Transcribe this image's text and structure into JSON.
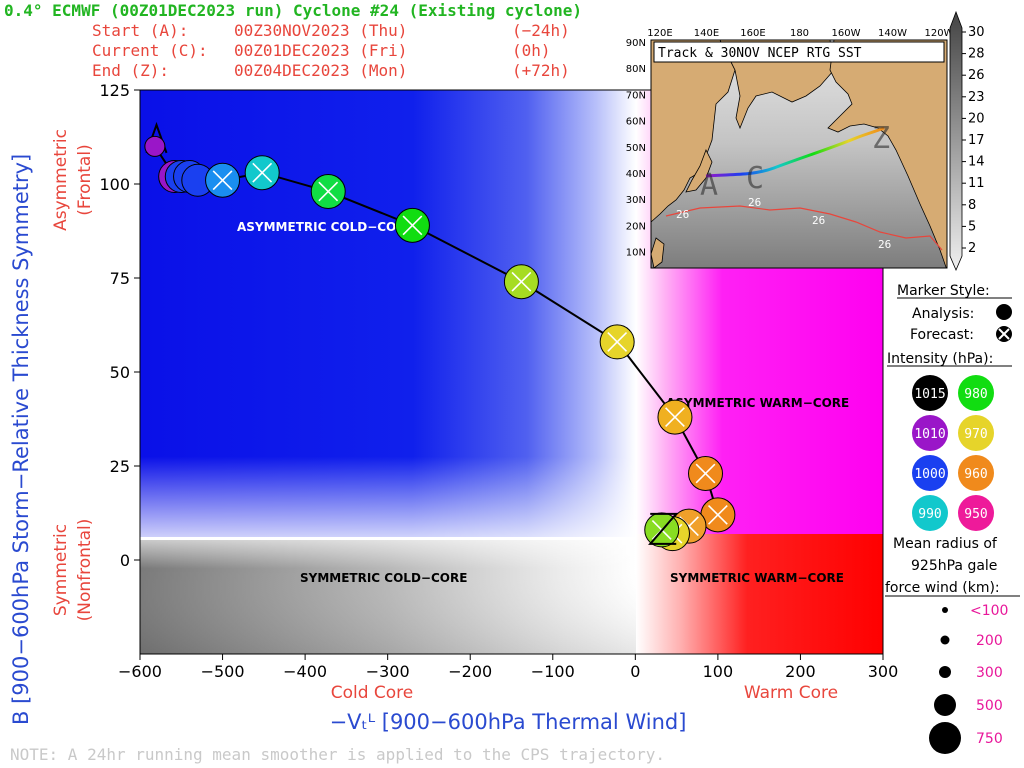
{
  "header": {
    "title": "0.4° ECMWF (00Z01DEC2023 run) Cyclone #24 (Existing cyclone)",
    "start": {
      "label": "Start (A):",
      "date": "00Z30NOV2023 (Thu)",
      "offset": "(−24h)"
    },
    "current": {
      "label": "Current (C):",
      "date": "00Z01DEC2023 (Fri)",
      "offset": "(0h)"
    },
    "end": {
      "label": "End (Z):",
      "date": "00Z04DEC2023 (Mon)",
      "offset": "(+72h)"
    }
  },
  "axes": {
    "ylabel": "B [900−600hPa Storm−Relative Thickness Symmetry]",
    "xlabel": "−Vₜᴸ [900−600hPa Thermal Wind]",
    "y_top_label_1": "Asymmetric",
    "y_top_label_2": "(Frontal)",
    "y_bottom_label_1": "Symmetric",
    "y_bottom_label_2": "(Nonfrontal)",
    "x_left_label": "Cold Core",
    "x_right_label": "Warm Core",
    "x_ticks": [
      "−600",
      "−500",
      "−400",
      "−300",
      "−200",
      "−100",
      "0",
      "100",
      "200",
      "300"
    ],
    "y_ticks": [
      "125",
      "100",
      "75",
      "50",
      "25",
      "0"
    ]
  },
  "regions": {
    "asym_cold": "ASYMMETRIC COLD−CORE",
    "asym_warm": "ASYMMETRIC WARM−CORE",
    "sym_cold": "SYMMETRIC COLD−CORE",
    "sym_warm": "SYMMETRIC WARM−CORE"
  },
  "note": "NOTE:  A 24hr running mean smoother is applied to the CPS trajectory.",
  "inset": {
    "title": "Track & 30NOV NCEP RTG SST",
    "lon_ticks": [
      "120E",
      "140E",
      "160E",
      "180",
      "160W",
      "140W",
      "120W"
    ],
    "lat_ticks": [
      "90N",
      "80N",
      "70N",
      "60N",
      "50N",
      "40N",
      "30N",
      "20N",
      "10N"
    ],
    "sst_labels": [
      "26",
      "26",
      "26",
      "26"
    ],
    "marker_a": "A",
    "marker_c": "C",
    "marker_z": "Z"
  },
  "colorbar": {
    "ticks": [
      "30",
      "28",
      "26",
      "23",
      "20",
      "17",
      "14",
      "11",
      "8",
      "5",
      "2"
    ]
  },
  "legend": {
    "marker_style_title": "Marker Style:",
    "analysis": "Analysis:",
    "forecast": "Forecast:",
    "intensity_title": "Intensity (hPa):",
    "intensity": [
      {
        "label": "1015",
        "color": "#000000"
      },
      {
        "label": "980",
        "color": "#11dd11"
      },
      {
        "label": "1010",
        "color": "#9a16c8"
      },
      {
        "label": "970",
        "color": "#e6d42a"
      },
      {
        "label": "1000",
        "color": "#1a40f0"
      },
      {
        "label": "960",
        "color": "#f08a1c"
      },
      {
        "label": "990",
        "color": "#12c8cc"
      },
      {
        "label": "950",
        "color": "#ee1a9a"
      }
    ],
    "radius_title_1": "Mean radius of",
    "radius_title_2": "925hPa gale",
    "radius_title_3": "force wind (km):",
    "radius": [
      "<100",
      "200",
      "300",
      "500",
      "750"
    ]
  },
  "chart_data": {
    "type": "scatter",
    "title": "0.4° ECMWF (00Z01DEC2023 run) Cyclone #24 (Existing cyclone)",
    "xlabel": "−Vt^L [900−600hPa Thermal Wind]",
    "ylabel": "B [900−600hPa Storm−Relative Thickness Symmetry]",
    "xlim": [
      -600,
      300
    ],
    "ylim": [
      -25,
      125
    ],
    "start_marker": {
      "label": "A",
      "x": -580,
      "y": 112
    },
    "end_marker": {
      "label": "Z",
      "x": 35,
      "y": 8
    },
    "points": [
      {
        "x": -582,
        "y": 110,
        "color": "#9a16c8",
        "type": "analysis"
      },
      {
        "x": -558,
        "y": 102,
        "color": "#9a16c8",
        "type": "analysis"
      },
      {
        "x": -550,
        "y": 102,
        "color": "#1a40f0",
        "type": "analysis"
      },
      {
        "x": -540,
        "y": 102,
        "color": "#1a40f0",
        "type": "analysis"
      },
      {
        "x": -530,
        "y": 101,
        "color": "#1a40f0",
        "type": "analysis"
      },
      {
        "x": -500,
        "y": 101,
        "color": "#1a8ef0",
        "type": "forecast"
      },
      {
        "x": -452,
        "y": 103,
        "color": "#12c8cc",
        "type": "forecast"
      },
      {
        "x": -372,
        "y": 98,
        "color": "#11dd44",
        "type": "forecast"
      },
      {
        "x": -270,
        "y": 89,
        "color": "#11dd11",
        "type": "forecast"
      },
      {
        "x": -138,
        "y": 74,
        "color": "#a6dc22",
        "type": "forecast"
      },
      {
        "x": -22,
        "y": 58,
        "color": "#e6d42a",
        "type": "forecast"
      },
      {
        "x": 48,
        "y": 38,
        "color": "#f0b020",
        "type": "forecast"
      },
      {
        "x": 85,
        "y": 23,
        "color": "#f08a1c",
        "type": "forecast"
      },
      {
        "x": 100,
        "y": 12,
        "color": "#f08a1c",
        "type": "forecast"
      },
      {
        "x": 65,
        "y": 9,
        "color": "#f0a02a",
        "type": "forecast"
      },
      {
        "x": 45,
        "y": 7,
        "color": "#e6d42a",
        "type": "forecast"
      },
      {
        "x": 32,
        "y": 8,
        "color": "#88dd22",
        "type": "forecast"
      }
    ]
  }
}
